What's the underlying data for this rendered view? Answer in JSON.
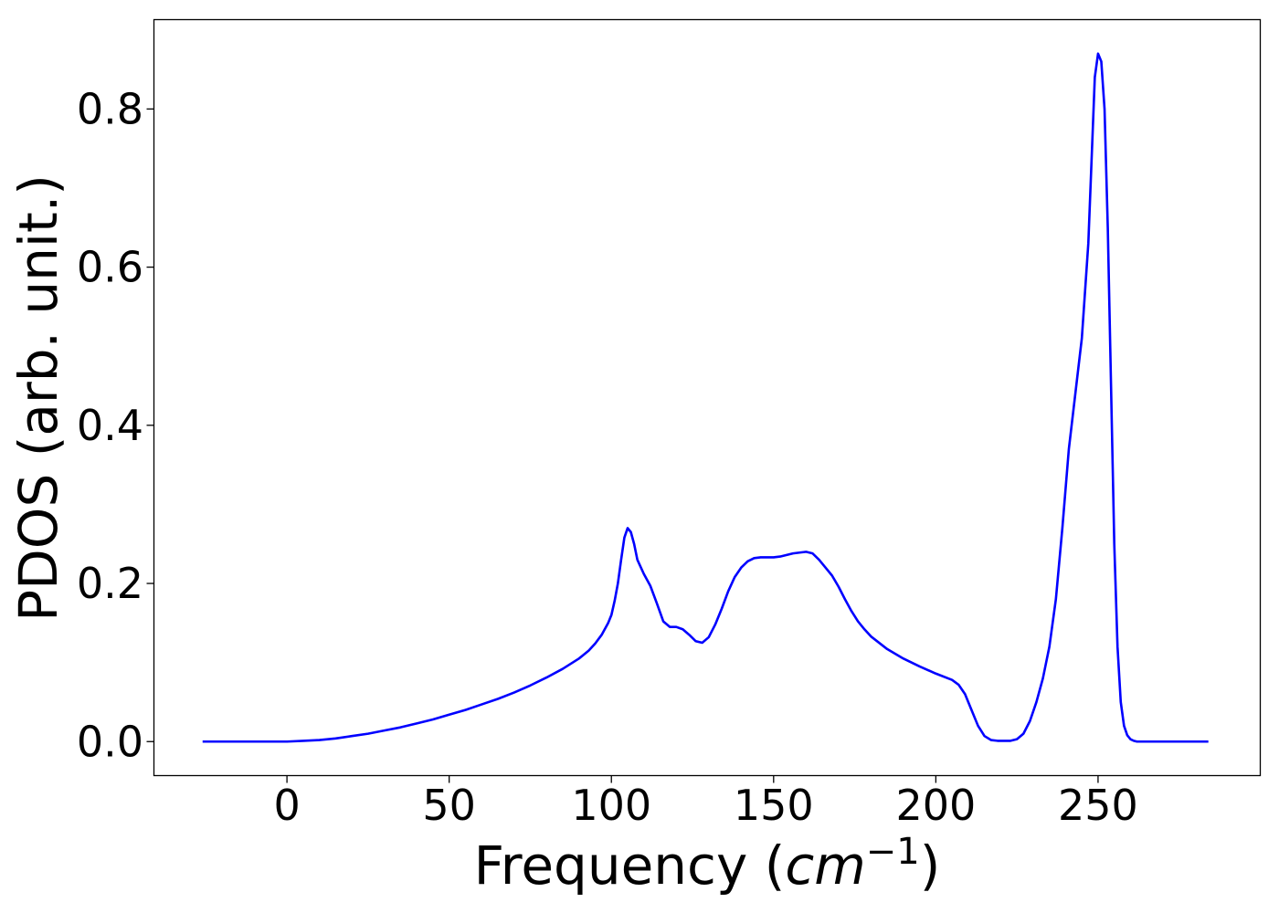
{
  "chart_data": {
    "type": "line",
    "xlabel": "Frequency (",
    "xlabel_math": "cm",
    "xlabel_sup": "−1",
    "xlabel_close": ")",
    "ylabel": "PDOS (arb. unit.)",
    "xlim": [
      -41,
      300
    ],
    "ylim": [
      -0.043,
      0.913
    ],
    "xticks": [
      0,
      50,
      100,
      150,
      200,
      250
    ],
    "xtick_labels": [
      "0",
      "50",
      "100",
      "150",
      "200",
      "250"
    ],
    "yticks": [
      0.0,
      0.2,
      0.4,
      0.6,
      0.8
    ],
    "ytick_labels": [
      "0.0",
      "0.2",
      "0.4",
      "0.6",
      "0.8"
    ],
    "grid": false,
    "series": [
      {
        "color": "#0000ff",
        "x": [
          -26,
          -10,
          0,
          5,
          10,
          15,
          20,
          25,
          30,
          35,
          40,
          45,
          50,
          55,
          60,
          65,
          70,
          75,
          80,
          85,
          90,
          93,
          95,
          97,
          99,
          100,
          101,
          102,
          103,
          104,
          105,
          106,
          107,
          108,
          110,
          112,
          114,
          116,
          118,
          120,
          122,
          124,
          126,
          128,
          130,
          132,
          134,
          136,
          138,
          140,
          142,
          144,
          146,
          148,
          150,
          152,
          154,
          156,
          158,
          160,
          162,
          164,
          166,
          168,
          170,
          172,
          174,
          176,
          178,
          180,
          185,
          190,
          195,
          200,
          205,
          207,
          209,
          211,
          213,
          215,
          217,
          219,
          221,
          223,
          225,
          227,
          229,
          231,
          233,
          235,
          237,
          239,
          241,
          243,
          245,
          247,
          249,
          250,
          251,
          252,
          253,
          254,
          255,
          256,
          257,
          258,
          259,
          260,
          261,
          262,
          263,
          264,
          265,
          267,
          270,
          275,
          284
        ],
        "y": [
          0.0,
          0.0,
          0.0,
          0.001,
          0.002,
          0.004,
          0.007,
          0.01,
          0.014,
          0.018,
          0.023,
          0.028,
          0.034,
          0.04,
          0.047,
          0.054,
          0.062,
          0.071,
          0.081,
          0.092,
          0.105,
          0.115,
          0.124,
          0.135,
          0.15,
          0.16,
          0.178,
          0.2,
          0.23,
          0.258,
          0.27,
          0.265,
          0.25,
          0.23,
          0.212,
          0.197,
          0.175,
          0.152,
          0.145,
          0.145,
          0.142,
          0.135,
          0.127,
          0.125,
          0.132,
          0.148,
          0.168,
          0.19,
          0.208,
          0.22,
          0.228,
          0.232,
          0.233,
          0.233,
          0.233,
          0.234,
          0.236,
          0.238,
          0.239,
          0.24,
          0.238,
          0.23,
          0.22,
          0.21,
          0.196,
          0.18,
          0.165,
          0.152,
          0.142,
          0.133,
          0.117,
          0.105,
          0.095,
          0.086,
          0.078,
          0.072,
          0.06,
          0.04,
          0.02,
          0.007,
          0.002,
          0.001,
          0.001,
          0.001,
          0.003,
          0.01,
          0.026,
          0.05,
          0.08,
          0.12,
          0.18,
          0.27,
          0.37,
          0.44,
          0.51,
          0.63,
          0.84,
          0.87,
          0.86,
          0.8,
          0.65,
          0.45,
          0.25,
          0.12,
          0.05,
          0.02,
          0.008,
          0.003,
          0.001,
          0.0,
          0.0,
          0.0,
          0.0,
          0.0,
          0.0,
          0.0,
          0.0
        ]
      }
    ]
  }
}
